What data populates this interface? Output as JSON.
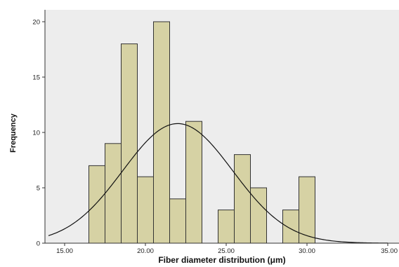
{
  "chart_data": {
    "type": "bar",
    "title": "",
    "xlabel": "Fiber diameter distribution (μm)",
    "ylabel": "Frequency",
    "xlim": [
      14,
      35
    ],
    "ylim": [
      0,
      21
    ],
    "x_ticks": [
      {
        "value": 15,
        "label": "15.00"
      },
      {
        "value": 20,
        "label": "20.00"
      },
      {
        "value": 25,
        "label": "25.00"
      },
      {
        "value": 30,
        "label": "30.00"
      },
      {
        "value": 35,
        "label": "35.00"
      }
    ],
    "y_ticks": [
      {
        "value": 0,
        "label": "0"
      },
      {
        "value": 5,
        "label": "5"
      },
      {
        "value": 10,
        "label": "10"
      },
      {
        "value": 15,
        "label": "15"
      },
      {
        "value": 20,
        "label": "20"
      }
    ],
    "bins": [
      {
        "x0": 16.5,
        "x1": 17.5,
        "count": 7
      },
      {
        "x0": 17.5,
        "x1": 18.5,
        "count": 9
      },
      {
        "x0": 18.5,
        "x1": 19.5,
        "count": 18
      },
      {
        "x0": 19.5,
        "x1": 20.5,
        "count": 6
      },
      {
        "x0": 20.5,
        "x1": 21.5,
        "count": 20
      },
      {
        "x0": 21.5,
        "x1": 22.5,
        "count": 4
      },
      {
        "x0": 22.5,
        "x1": 23.5,
        "count": 11
      },
      {
        "x0": 24.5,
        "x1": 25.5,
        "count": 3
      },
      {
        "x0": 25.5,
        "x1": 26.5,
        "count": 8
      },
      {
        "x0": 26.5,
        "x1": 27.5,
        "count": 5
      },
      {
        "x0": 28.5,
        "x1": 29.5,
        "count": 3
      },
      {
        "x0": 29.5,
        "x1": 30.5,
        "count": 6
      }
    ],
    "normal_curve": {
      "mean": 22.0,
      "sd": 3.4,
      "peak": 10.8
    },
    "grid": false,
    "colors": {
      "plot_bg": "#ededed",
      "bar_fill": "#d6d2a4",
      "bar_stroke": "#333333",
      "curve": "#111111",
      "axis": "#333333"
    }
  }
}
